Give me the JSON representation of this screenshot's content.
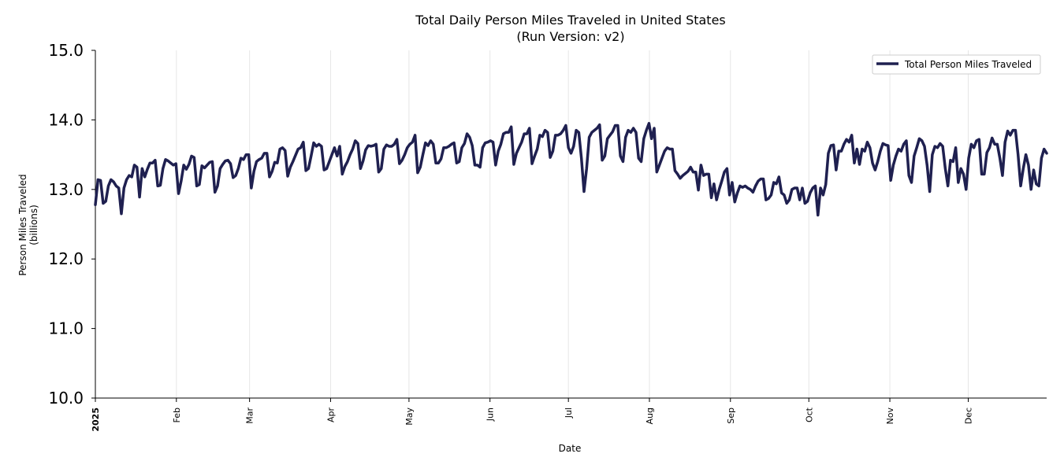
{
  "chart_data": {
    "type": "line",
    "title": "Total Daily Person Miles Traveled in United States",
    "subtitle": "(Run Version: v2)",
    "xlabel": "Date",
    "ylabel_line1": "Person Miles Traveled",
    "ylabel_line2": "(billions)",
    "ylim": [
      10.0,
      15.0
    ],
    "yticks": [
      10.0,
      11.0,
      12.0,
      13.0,
      14.0,
      15.0
    ],
    "ytick_labels": [
      "10.0",
      "11.0",
      "12.0",
      "13.0",
      "14.0",
      "15.0"
    ],
    "x_range_days": [
      0,
      364
    ],
    "xtick_days": [
      0,
      31,
      59,
      90,
      120,
      151,
      181,
      212,
      243,
      273,
      304,
      334
    ],
    "xtick_labels": [
      "2025",
      "Feb",
      "Mar",
      "Apr",
      "May",
      "Jun",
      "Jul",
      "Aug",
      "Sep",
      "Oct",
      "Nov",
      "Dec"
    ],
    "grid": "vertical",
    "legend_position": "top-right",
    "color": "#1f2050",
    "series": [
      {
        "name": "Total Person Miles Traveled",
        "values": [
          12.78,
          13.14,
          13.13,
          12.8,
          12.83,
          13.05,
          13.14,
          13.11,
          13.05,
          13.02,
          12.65,
          13.02,
          13.14,
          13.2,
          13.18,
          13.35,
          13.32,
          12.89,
          13.3,
          13.18,
          13.29,
          13.38,
          13.38,
          13.42,
          13.05,
          13.06,
          13.3,
          13.43,
          13.41,
          13.38,
          13.35,
          13.37,
          12.94,
          13.12,
          13.35,
          13.29,
          13.36,
          13.48,
          13.46,
          13.05,
          13.07,
          13.34,
          13.31,
          13.35,
          13.39,
          13.4,
          12.96,
          13.05,
          13.3,
          13.36,
          13.41,
          13.42,
          13.37,
          13.17,
          13.2,
          13.3,
          13.45,
          13.43,
          13.5,
          13.5,
          13.02,
          13.26,
          13.4,
          13.43,
          13.45,
          13.52,
          13.52,
          13.18,
          13.26,
          13.39,
          13.38,
          13.58,
          13.6,
          13.56,
          13.19,
          13.32,
          13.4,
          13.49,
          13.58,
          13.6,
          13.68,
          13.27,
          13.3,
          13.48,
          13.67,
          13.62,
          13.65,
          13.62,
          13.28,
          13.3,
          13.4,
          13.5,
          13.6,
          13.48,
          13.62,
          13.22,
          13.33,
          13.4,
          13.5,
          13.58,
          13.7,
          13.66,
          13.3,
          13.41,
          13.57,
          13.63,
          13.62,
          13.63,
          13.65,
          13.25,
          13.3,
          13.58,
          13.64,
          13.62,
          13.62,
          13.65,
          13.72,
          13.37,
          13.42,
          13.5,
          13.6,
          13.65,
          13.68,
          13.78,
          13.24,
          13.32,
          13.5,
          13.67,
          13.63,
          13.7,
          13.65,
          13.38,
          13.38,
          13.44,
          13.6,
          13.6,
          13.62,
          13.65,
          13.67,
          13.38,
          13.4,
          13.6,
          13.66,
          13.8,
          13.75,
          13.63,
          13.35,
          13.35,
          13.32,
          13.6,
          13.67,
          13.68,
          13.7,
          13.68,
          13.35,
          13.55,
          13.65,
          13.8,
          13.82,
          13.82,
          13.9,
          13.36,
          13.52,
          13.6,
          13.68,
          13.8,
          13.8,
          13.88,
          13.37,
          13.48,
          13.58,
          13.78,
          13.76,
          13.85,
          13.82,
          13.46,
          13.55,
          13.78,
          13.78,
          13.8,
          13.85,
          13.92,
          13.6,
          13.52,
          13.62,
          13.85,
          13.82,
          13.45,
          12.97,
          13.3,
          13.75,
          13.82,
          13.85,
          13.88,
          13.93,
          13.42,
          13.48,
          13.73,
          13.78,
          13.83,
          13.92,
          13.92,
          13.48,
          13.4,
          13.75,
          13.85,
          13.82,
          13.88,
          13.82,
          13.45,
          13.4,
          13.73,
          13.85,
          13.95,
          13.73,
          13.88,
          13.25,
          13.35,
          13.45,
          13.55,
          13.6,
          13.58,
          13.58,
          13.27,
          13.22,
          13.16,
          13.2,
          13.23,
          13.26,
          13.32,
          13.25,
          13.25,
          12.99,
          13.35,
          13.2,
          13.22,
          13.22,
          12.88,
          13.08,
          12.85,
          13.0,
          13.12,
          13.25,
          13.3,
          12.92,
          13.1,
          12.82,
          12.95,
          13.05,
          13.03,
          13.05,
          13.02,
          13.0,
          12.96,
          13.05,
          13.12,
          13.15,
          13.15,
          12.85,
          12.87,
          12.92,
          13.1,
          13.08,
          13.18,
          12.95,
          12.92,
          12.8,
          12.85,
          13.0,
          13.02,
          13.02,
          12.85,
          13.02,
          12.8,
          12.83,
          12.95,
          13.02,
          13.05,
          12.63,
          13.02,
          12.92,
          13.07,
          13.52,
          13.63,
          13.64,
          13.28,
          13.55,
          13.55,
          13.65,
          13.72,
          13.68,
          13.78,
          13.38,
          13.58,
          13.36,
          13.58,
          13.55,
          13.68,
          13.6,
          13.38,
          13.28,
          13.4,
          13.55,
          13.66,
          13.64,
          13.63,
          13.13,
          13.35,
          13.48,
          13.58,
          13.55,
          13.65,
          13.7,
          13.2,
          13.1,
          13.48,
          13.6,
          13.73,
          13.7,
          13.62,
          13.35,
          12.97,
          13.5,
          13.62,
          13.6,
          13.66,
          13.62,
          13.3,
          13.05,
          13.42,
          13.4,
          13.6,
          13.1,
          13.3,
          13.22,
          13.0,
          13.45,
          13.65,
          13.6,
          13.7,
          13.72,
          13.22,
          13.22,
          13.53,
          13.6,
          13.74,
          13.65,
          13.65,
          13.45,
          13.2,
          13.68,
          13.84,
          13.78,
          13.85,
          13.85,
          13.5,
          13.05,
          13.3,
          13.5,
          13.35,
          13.0,
          13.28,
          13.08,
          13.05,
          13.45,
          13.58,
          13.52
        ]
      }
    ]
  }
}
